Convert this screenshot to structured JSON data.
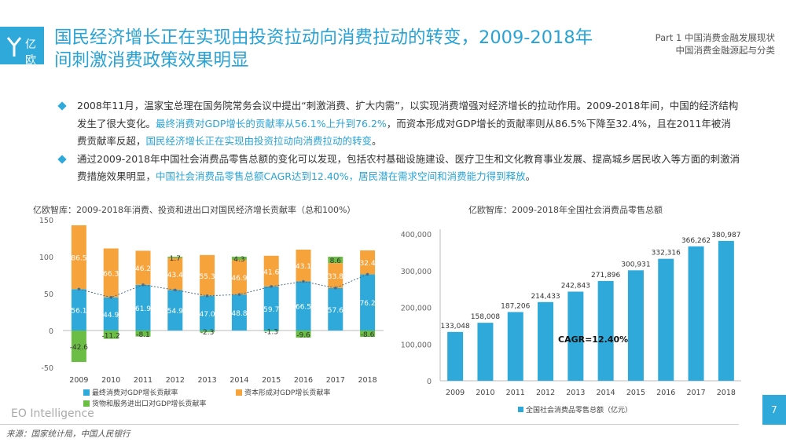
{
  "header": {
    "logo_text": "亿欧",
    "title": "国民经济增长正在实现由投资拉动向消费拉动的转变，2009-2018年间刺激消费政策效果明显",
    "section_line1": "Part 1 中国消费金融发展现状",
    "section_line2": "中国消费金融源起与分类"
  },
  "bullets": [
    {
      "text1": "2008年11月，温家宝总理在国务院常务会议中提出“刺激消费、扩大内需”，以实现消费增强对经济增长的拉动作用。2009-2018年间，中国的经济结构发生了很大变化。",
      "hl1": "最终消费对GDP增长的贡献率从56.1%上升到76.2%",
      "text2": "，而资本形成对GDP增长的贡献率则从86.5%下降至32.4%，且在2011年被消费贡献率反超，",
      "hl2": "国民经济增长正在实现由投资拉动向消费拉动的转变",
      "text3": "。"
    },
    {
      "text1": "通过2009-2018年中国社会消费品零售总额的变化可以发现，包括农村基础设施建设、医疗卫生和文化教育事业发展、提高城乡居民收入等方面的刺激消费措施效果明显，",
      "hl1": "中国社会消费品零售总额CAGR达到12.40%，居民潜在需求空间和消费能力得到释放",
      "text2": "。"
    }
  ],
  "colors": {
    "accent": "#29a3d6",
    "bar_blue": "#2fa9d9",
    "bar_orange": "#f7a33c",
    "bar_green": "#6cbd45",
    "page_box": "#2fa9d9"
  },
  "chart_data": [
    {
      "type": "bar",
      "subtype": "stacked",
      "title": "亿欧智库：2009-2018年消费、投资和进出口对国民经济增长贡献率（总和100%）",
      "categories": [
        "2009",
        "2010",
        "2011",
        "2012",
        "2013",
        "2014",
        "2015",
        "2016",
        "2017",
        "2018"
      ],
      "series": [
        {
          "name": "最终消费对GDP增长贡献率",
          "values": [
            56.1,
            44.9,
            61.9,
            54.9,
            47.0,
            48.8,
            59.7,
            66.5,
            57.6,
            76.2
          ]
        },
        {
          "name": "资本形成对GDP增长贡献率",
          "values": [
            86.5,
            66.3,
            46.2,
            43.4,
            55.3,
            46.9,
            41.6,
            43.1,
            33.8,
            32.4
          ]
        },
        {
          "name": "货物和服务进出口对GDP增长贡献率",
          "values": [
            -42.6,
            -11.2,
            -8.1,
            1.7,
            -2.3,
            4.3,
            -1.3,
            -9.6,
            8.6,
            -8.6
          ]
        }
      ],
      "line_series": "最终消费对GDP增长贡献率",
      "yticks": [
        "150",
        "100",
        "50",
        "0",
        "-50"
      ],
      "ylim": [
        -50,
        150
      ],
      "legend_position": "bottom"
    },
    {
      "type": "bar",
      "title": "亿欧智库：2009-2018年全国社会消费品零售总额",
      "categories": [
        "2009",
        "2010",
        "2011",
        "2012",
        "2013",
        "2014",
        "2015",
        "2016",
        "2017",
        "2018"
      ],
      "series": [
        {
          "name": "全国社会消费品零售总额（亿元）",
          "values": [
            133048,
            158008,
            187206,
            214433,
            242843,
            271896,
            300931,
            332316,
            366262,
            380987
          ]
        }
      ],
      "yticks": [
        "400,000",
        "300,000",
        "200,000",
        "100,000",
        "0"
      ],
      "ylim": [
        0,
        400000
      ],
      "annotation": "CAGR=12.40%",
      "legend_position": "bottom"
    }
  ],
  "footer": {
    "brand": "EO Intelligence",
    "source": "来源：国家统计局，中国人民银行",
    "page": "7"
  }
}
